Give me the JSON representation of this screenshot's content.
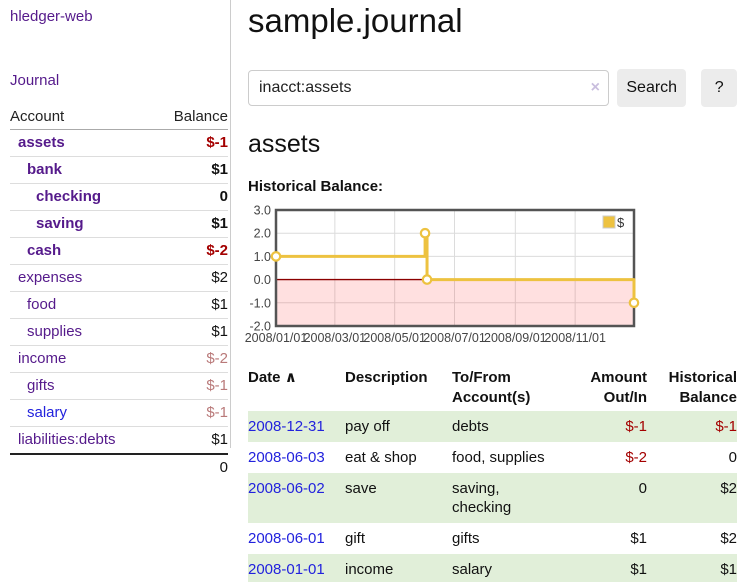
{
  "colors": {
    "link_purple": "#551a8b",
    "link_blue": "#2222dd",
    "negative_red": "#a40000",
    "negative_faded_red": "#b97979",
    "row_stripe_green": "#e1efd9",
    "button_gray": "#ececec",
    "chart_line_gold": "#edc240",
    "chart_negative_region_pink": "rgba(255,0,0,0.12)",
    "chart_zero_line_red": "#8b0000",
    "chart_border_gray": "#545454"
  },
  "sidebar": {
    "app_title": "hledger-web",
    "journal_link": "Journal",
    "accounts": {
      "col_account": "Account",
      "col_balance": "Balance",
      "rows": [
        {
          "name": "assets",
          "depth": 0,
          "bold": true,
          "balance": "$-1",
          "tone": "neg"
        },
        {
          "name": "bank",
          "depth": 1,
          "bold": true,
          "balance": "$1",
          "tone": "pos"
        },
        {
          "name": "checking",
          "depth": 2,
          "bold": true,
          "balance": "0",
          "tone": "pos"
        },
        {
          "name": "saving",
          "depth": 2,
          "bold": true,
          "balance": "$1",
          "tone": "pos"
        },
        {
          "name": "cash",
          "depth": 1,
          "bold": true,
          "balance": "$-2",
          "tone": "neg"
        },
        {
          "name": "expenses",
          "depth": 0,
          "bold": false,
          "balance": "$2",
          "tone": "pos"
        },
        {
          "name": "food",
          "depth": 1,
          "bold": false,
          "balance": "$1",
          "tone": "pos"
        },
        {
          "name": "supplies",
          "depth": 1,
          "bold": false,
          "balance": "$1",
          "tone": "pos"
        },
        {
          "name": "income",
          "depth": 0,
          "bold": false,
          "balance": "$-2",
          "tone": "negfaded"
        },
        {
          "name": "gifts",
          "depth": 1,
          "bold": false,
          "balance": "$-1",
          "tone": "negfaded"
        },
        {
          "name": "salary",
          "depth": 1,
          "bold": false,
          "balance": "$-1",
          "tone": "negfaded",
          "link_blue": true
        },
        {
          "name": "liabilities:debts",
          "depth": 0,
          "bold": false,
          "balance": "$1",
          "tone": "pos"
        }
      ],
      "total": "0"
    }
  },
  "main": {
    "title": "sample.journal",
    "search": {
      "value": "inacct:assets",
      "clear_icon": "×",
      "search_button": "Search",
      "help_button": "?"
    },
    "account_heading": "assets",
    "chart_title": "Historical Balance:"
  },
  "chart_data": {
    "type": "line",
    "step": true,
    "title": "Historical Balance:",
    "legend": [
      {
        "label": "$",
        "color": "#edc240"
      }
    ],
    "legend_position": "top-right",
    "grid": true,
    "ylim": [
      -2,
      3
    ],
    "ytick_labels": [
      "3.0",
      "2.0",
      "1.0",
      "0.0",
      "-1.0",
      "-2.0"
    ],
    "xlim_days": [
      0,
      365
    ],
    "xticks": [
      {
        "day": 0,
        "label": "2008/01/01"
      },
      {
        "day": 60,
        "label": "2008/03/01"
      },
      {
        "day": 121,
        "label": "2008/05/01"
      },
      {
        "day": 182,
        "label": "2008/07/01"
      },
      {
        "day": 244,
        "label": "2008/09/01"
      },
      {
        "day": 305,
        "label": "2008/11/01"
      }
    ],
    "series": [
      {
        "name": "$",
        "color": "#edc240",
        "points": [
          {
            "date": "2008-01-01",
            "day": 0,
            "value": 1
          },
          {
            "date": "2008-06-01",
            "day": 152,
            "value": 2
          },
          {
            "date": "2008-06-03",
            "day": 154,
            "value": 0
          },
          {
            "date": "2008-12-31",
            "day": 365,
            "value": -1
          }
        ]
      }
    ],
    "negative_region": true,
    "zero_line": true
  },
  "register_table": {
    "headers": {
      "date": "Date",
      "sort_arrow": "∧",
      "description": "Description",
      "account": "To/From Account(s)",
      "amount": "Amount Out/In",
      "balance": "Historical Balance"
    },
    "rows": [
      {
        "date": "2008-12-31",
        "description": "pay off",
        "accounts": "debts",
        "amount": "$-1",
        "balance": "$-1"
      },
      {
        "date": "2008-06-03",
        "description": "eat & shop",
        "accounts": "food, supplies",
        "amount": "$-2",
        "balance": "0"
      },
      {
        "date": "2008-06-02",
        "description": "save",
        "accounts": "saving, checking",
        "amount": "0",
        "balance": "$2"
      },
      {
        "date": "2008-06-01",
        "description": "gift",
        "accounts": "gifts",
        "amount": "$1",
        "balance": "$2"
      },
      {
        "date": "2008-01-01",
        "description": "income",
        "accounts": "salary",
        "amount": "$1",
        "balance": "$1"
      }
    ]
  }
}
